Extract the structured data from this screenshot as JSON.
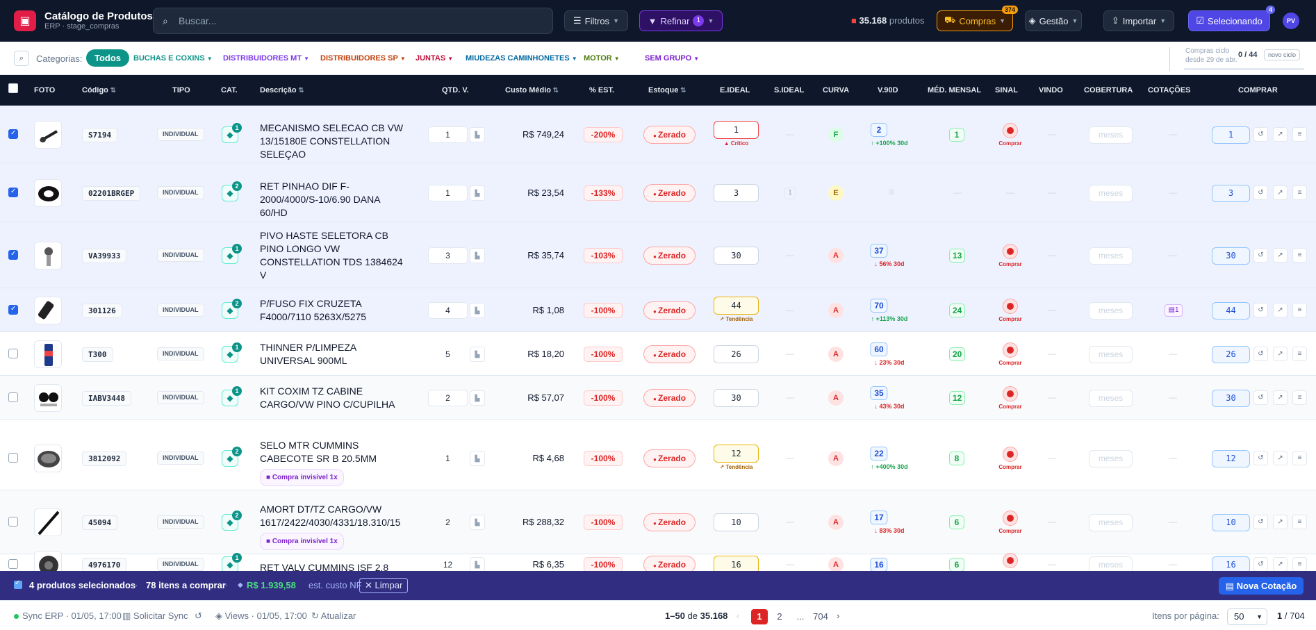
{
  "header": {
    "title": "Catálogo de Produtos",
    "subtitle": "ERP · stage_compras",
    "search_placeholder": "Buscar...",
    "filtros": "Filtros",
    "refinar": "Refinar",
    "refinar_count": "1",
    "produtos_count": "35.168",
    "produtos_label": "produtos",
    "compras": "Compras",
    "compras_badge": "374",
    "gestao": "Gestão",
    "importar": "Importar",
    "selecionando": "Selecionando",
    "selecionando_badge": "4",
    "avatar": "PV"
  },
  "categories": {
    "label": "Categorias:",
    "all": "Todos",
    "items": [
      {
        "label": "BUCHAS E COXINS",
        "color": "#0d9488"
      },
      {
        "label": "DISTRIBUIDORES MT",
        "color": "#7c3aed"
      },
      {
        "label": "DISTRIBUIDORES SP",
        "color": "#c2410c"
      },
      {
        "label": "JUNTAS",
        "color": "#be123c"
      },
      {
        "label": "MIUDEZAS CAMINHONETES",
        "color": "#0369a1"
      },
      {
        "label": "MOTOR",
        "color": "#4d7c0f"
      },
      {
        "label": "SEM GRUPO",
        "color": "#7e22ce"
      }
    ],
    "cycle_l1": "Compras ciclo",
    "cycle_l2": "desde 29 de abr.",
    "cycle_count": "0 / 44",
    "cycle_new": "novo ciclo"
  },
  "columns": [
    "FOTO",
    "Código",
    "TIPO",
    "CAT.",
    "Descrição",
    "QTD. V.",
    "Custo Médio",
    "% EST.",
    "Estoque",
    "E.IDEAL",
    "S.IDEAL",
    "CURVA",
    "V.90D",
    "MÉD. MENSAL",
    "SINAL",
    "VINDO",
    "COBERTURA",
    "COTAÇÕES",
    "COMPRAR"
  ],
  "rows": [
    {
      "sel": true,
      "code": "S7194",
      "tipo": "INDIVIDUAL",
      "cat": "1",
      "desc": "MECANISMO SELECAO CB VW 13/15180E CONSTELLATION SELEÇAO",
      "inv": "",
      "qtd": "1",
      "qtd_box": true,
      "custo": "R$ 749,24",
      "est": "-200%",
      "estoque": "Zerado",
      "eideal": "1",
      "etag": "Crítico",
      "etype": "crit",
      "sideal": "",
      "curva": "F",
      "v90": "2",
      "trend": "↑ +100% 30d",
      "tdir": "up",
      "med": "1",
      "sinal": "Comprar",
      "meses": "meses",
      "cot": "",
      "comprar": "1"
    },
    {
      "sel": true,
      "code": "02201BRGEP",
      "tipo": "INDIVIDUAL",
      "cat": "2",
      "desc": "RET PINHAO DIF F-2000/4000/S-10/6.90 DANA 60/HD",
      "inv": "",
      "qtd": "1",
      "qtd_box": true,
      "custo": "R$ 23,54",
      "est": "-133%",
      "estoque": "Zerado",
      "eideal": "3",
      "etag": "",
      "etype": "",
      "sideal": "1",
      "curva": "E",
      "v90": "",
      "v90z": "0",
      "trend": "",
      "tdir": "",
      "med": "",
      "sinal": "",
      "meses": "meses",
      "cot": "",
      "comprar": "3"
    },
    {
      "sel": true,
      "code": "VA39933",
      "tipo": "INDIVIDUAL",
      "cat": "1",
      "desc": "PIVO HASTE SELETORA CB PINO LONGO VW CONSTELLATION TDS 1384624 V",
      "inv": "",
      "qtd": "3",
      "qtd_box": true,
      "custo": "R$ 35,74",
      "est": "-103%",
      "estoque": "Zerado",
      "eideal": "30",
      "etag": "",
      "etype": "",
      "sideal": "",
      "curva": "A",
      "v90": "37",
      "trend": "↓ 56% 30d",
      "tdir": "dn",
      "med": "13",
      "sinal": "Comprar",
      "meses": "meses",
      "cot": "",
      "comprar": "30"
    },
    {
      "sel": true,
      "code": "301126",
      "tipo": "INDIVIDUAL",
      "cat": "2",
      "desc": "P/FUSO FIX CRUZETA F4000/7110 5263X/5275",
      "inv": "",
      "qtd": "4",
      "qtd_box": true,
      "custo": "R$ 1,08",
      "est": "-100%",
      "estoque": "Zerado",
      "eideal": "44",
      "etag": "Tendência",
      "etype": "tend",
      "sideal": "",
      "curva": "A",
      "v90": "70",
      "trend": "↑ +113% 30d",
      "tdir": "up",
      "med": "24",
      "sinal": "Comprar",
      "meses": "meses",
      "cot": "1",
      "comprar": "44"
    },
    {
      "sel": false,
      "code": "T300",
      "tipo": "INDIVIDUAL",
      "cat": "1",
      "desc": "THINNER P/LIMPEZA UNIVERSAL 900ML",
      "inv": "",
      "qtd": "5",
      "qtd_box": false,
      "custo": "R$ 18,20",
      "est": "-100%",
      "estoque": "Zerado",
      "eideal": "26",
      "etag": "",
      "etype": "",
      "sideal": "",
      "curva": "A",
      "v90": "60",
      "trend": "↓ 23% 30d",
      "tdir": "dn",
      "med": "20",
      "sinal": "Comprar",
      "meses": "meses",
      "cot": "",
      "comprar": "26"
    },
    {
      "sel": false,
      "code": "IABV3448",
      "tipo": "INDIVIDUAL",
      "cat": "1",
      "desc": "KIT COXIM TZ CABINE CARGO/VW PINO C/CUPILHA",
      "inv": "",
      "qtd": "2",
      "qtd_box": true,
      "custo": "R$ 57,07",
      "est": "-100%",
      "estoque": "Zerado",
      "eideal": "30",
      "etag": "",
      "etype": "",
      "sideal": "",
      "curva": "A",
      "v90": "35",
      "trend": "↓ 43% 30d",
      "tdir": "dn",
      "med": "12",
      "sinal": "Comprar",
      "meses": "meses",
      "cot": "",
      "comprar": "30"
    },
    {
      "sel": false,
      "code": "3812092",
      "tipo": "INDIVIDUAL",
      "cat": "2",
      "desc": "SELO MTR CUMMINS CABECOTE SR B 20.5MM",
      "inv": "Compra invisível 1x",
      "qtd": "1",
      "qtd_box": false,
      "custo": "R$ 4,68",
      "est": "-100%",
      "estoque": "Zerado",
      "eideal": "12",
      "etag": "Tendência",
      "etype": "tend",
      "sideal": "",
      "curva": "A",
      "v90": "22",
      "trend": "↑ +400% 30d",
      "tdir": "up",
      "med": "8",
      "sinal": "Comprar",
      "meses": "meses",
      "cot": "",
      "comprar": "12"
    },
    {
      "sel": false,
      "code": "45094",
      "tipo": "INDIVIDUAL",
      "cat": "2",
      "desc": "AMORT DT/TZ CARGO/VW 1617/2422/4030/4331/18.310/15",
      "inv": "Compra invisível 1x",
      "qtd": "2",
      "qtd_box": false,
      "custo": "R$ 288,32",
      "est": "-100%",
      "estoque": "Zerado",
      "eideal": "10",
      "etag": "",
      "etype": "",
      "sideal": "",
      "curva": "A",
      "v90": "17",
      "trend": "↓ 83% 30d",
      "tdir": "dn",
      "med": "6",
      "sinal": "Comprar",
      "meses": "meses",
      "cot": "",
      "comprar": "10"
    },
    {
      "sel": false,
      "code": "4976170",
      "tipo": "INDIVIDUAL",
      "cat": "1",
      "desc": "RET VALV CUMMINS ISF 2.8",
      "inv": "",
      "qtd": "12",
      "qtd_box": false,
      "custo": "R$ 6,35",
      "est": "-100%",
      "estoque": "Zerado",
      "eideal": "16",
      "etag": "",
      "etype": "tend",
      "sideal": "",
      "curva": "A",
      "v90": "16",
      "trend": "",
      "tdir": "",
      "med": "6",
      "sinal": "Comprar",
      "meses": "meses",
      "cot": "",
      "comprar": "16"
    }
  ],
  "selection": {
    "count": "4 produtos selecionados",
    "items": "78 itens a comprar",
    "value": "R$ 1.939,58",
    "value_label": "est. custo NF",
    "clear": "Limpar",
    "new_quote": "Nova Cotação"
  },
  "footer": {
    "sync": "Sync ERP · 01/05, 17:00",
    "request_sync": "Solicitar Sync",
    "views": "Views · 01/05, 17:00",
    "refresh": "Atualizar",
    "range": "1–50",
    "of": "de",
    "total": "35.168",
    "pages": [
      "1",
      "2",
      "...",
      "704"
    ],
    "per_page_label": "Itens por página:",
    "per_page": "50",
    "page_of": "1",
    "page_total": "/ 704"
  }
}
